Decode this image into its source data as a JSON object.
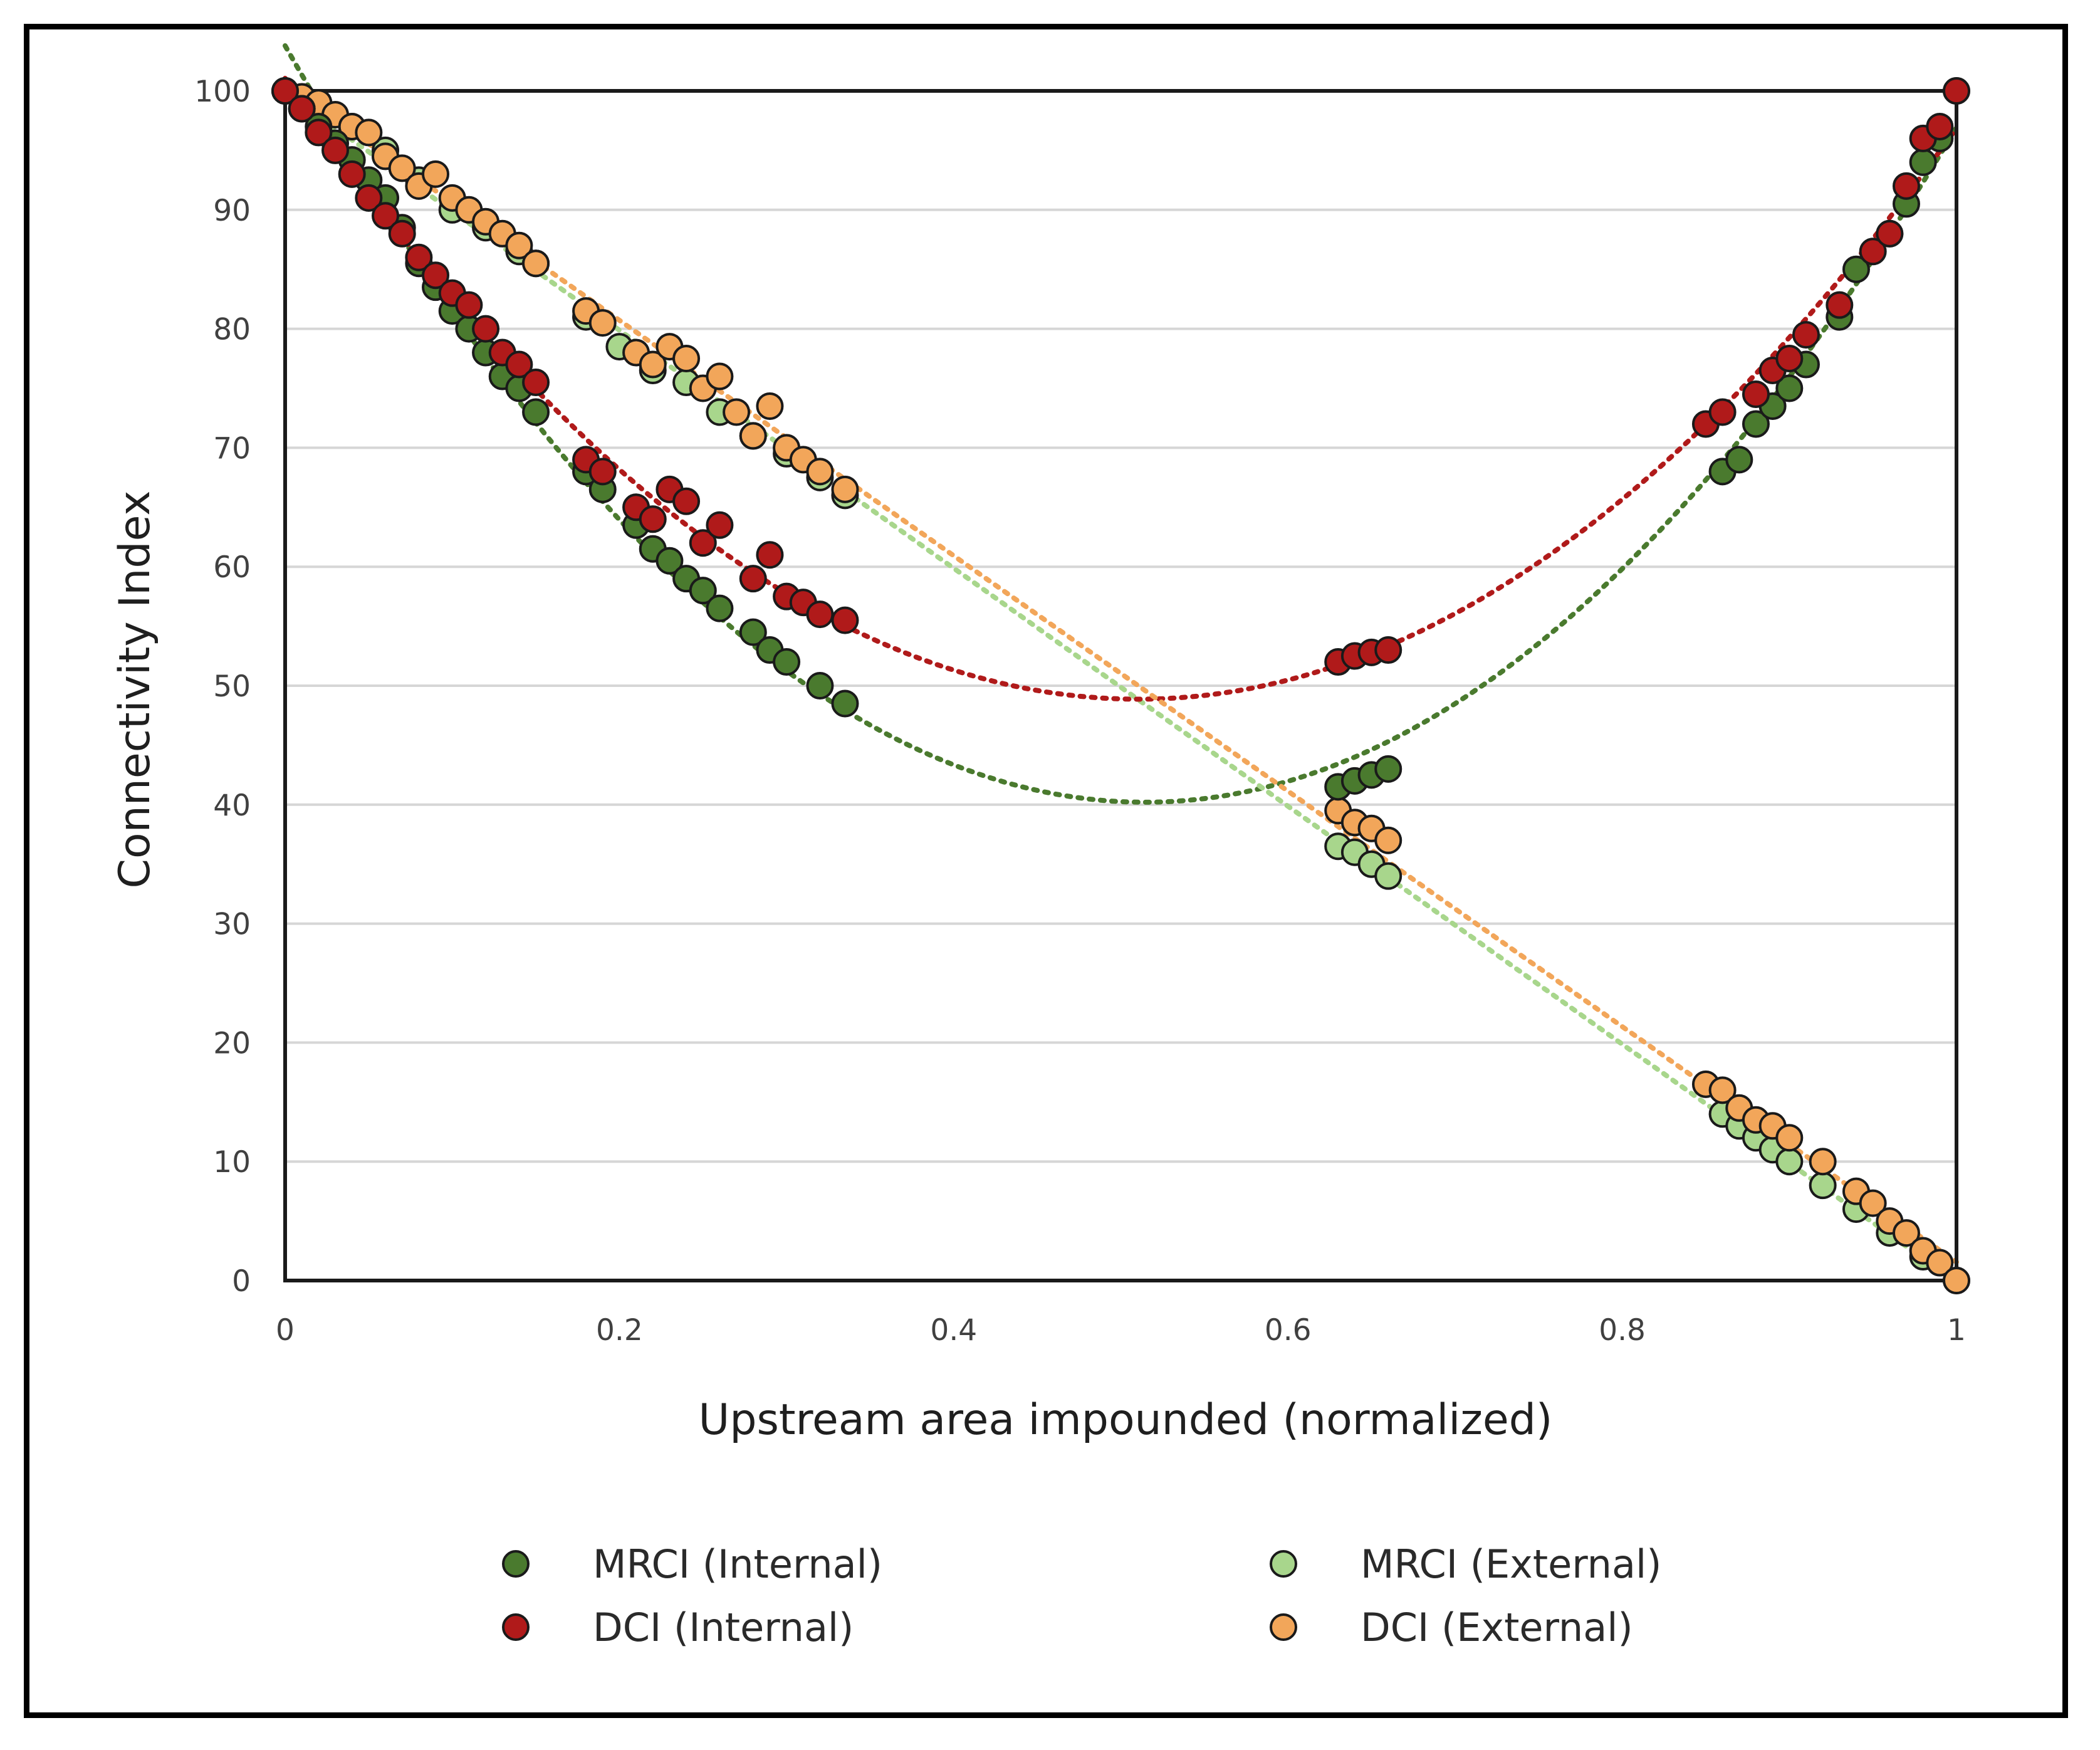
{
  "chart_data": {
    "type": "scatter",
    "title": "",
    "xlabel": "Upstream area impounded (normalized)",
    "ylabel": "Connectivity Index",
    "xlim": [
      0,
      1
    ],
    "ylim": [
      0,
      100
    ],
    "xticks": [
      "0",
      "0.2",
      "0.4",
      "0.6",
      "0.8",
      "1"
    ],
    "yticks": [
      "0",
      "10",
      "20",
      "30",
      "40",
      "50",
      "60",
      "70",
      "80",
      "90",
      "100"
    ],
    "grid": "horizontal",
    "legend_position": "bottom",
    "series": [
      {
        "name": "MRCI (Internal)",
        "color": "#4a7a2e",
        "trendline": "polynomial",
        "points": [
          [
            0,
            100
          ],
          [
            0.01,
            98.5
          ],
          [
            0.02,
            97
          ],
          [
            0.03,
            95.6
          ],
          [
            0.04,
            94.2
          ],
          [
            0.05,
            92.5
          ],
          [
            0.06,
            91
          ],
          [
            0.07,
            88.5
          ],
          [
            0.08,
            85.5
          ],
          [
            0.09,
            83.5
          ],
          [
            0.1,
            81.5
          ],
          [
            0.11,
            80
          ],
          [
            0.12,
            78
          ],
          [
            0.13,
            76
          ],
          [
            0.14,
            75
          ],
          [
            0.15,
            73
          ],
          [
            0.18,
            68
          ],
          [
            0.19,
            66.5
          ],
          [
            0.21,
            63.5
          ],
          [
            0.22,
            61.5
          ],
          [
            0.23,
            60.5
          ],
          [
            0.24,
            59
          ],
          [
            0.25,
            58
          ],
          [
            0.26,
            56.5
          ],
          [
            0.28,
            54.5
          ],
          [
            0.29,
            53
          ],
          [
            0.3,
            52
          ],
          [
            0.32,
            50
          ],
          [
            0.335,
            48.5
          ],
          [
            0.63,
            41.5
          ],
          [
            0.64,
            42
          ],
          [
            0.65,
            42.5
          ],
          [
            0.66,
            43
          ],
          [
            0.86,
            68
          ],
          [
            0.87,
            69
          ],
          [
            0.88,
            72
          ],
          [
            0.89,
            73.5
          ],
          [
            0.9,
            75
          ],
          [
            0.91,
            77
          ],
          [
            0.93,
            81
          ],
          [
            0.94,
            85
          ],
          [
            0.96,
            88
          ],
          [
            0.97,
            90.5
          ],
          [
            0.98,
            94
          ],
          [
            0.99,
            96
          ],
          [
            1,
            100
          ]
        ]
      },
      {
        "name": "MRCI (External)",
        "color": "#a8d68c",
        "trendline": "linear",
        "points": [
          [
            0,
            100
          ],
          [
            0.02,
            98.5
          ],
          [
            0.04,
            97
          ],
          [
            0.06,
            95
          ],
          [
            0.08,
            92.5
          ],
          [
            0.1,
            90
          ],
          [
            0.12,
            88.5
          ],
          [
            0.14,
            86.5
          ],
          [
            0.15,
            85.5
          ],
          [
            0.18,
            81
          ],
          [
            0.2,
            78.5
          ],
          [
            0.22,
            76.5
          ],
          [
            0.24,
            75.5
          ],
          [
            0.26,
            73
          ],
          [
            0.28,
            71
          ],
          [
            0.3,
            69.5
          ],
          [
            0.32,
            67.5
          ],
          [
            0.335,
            66
          ],
          [
            0.63,
            36.5
          ],
          [
            0.64,
            36
          ],
          [
            0.65,
            35
          ],
          [
            0.66,
            34
          ],
          [
            0.86,
            14
          ],
          [
            0.87,
            13
          ],
          [
            0.88,
            12
          ],
          [
            0.89,
            11
          ],
          [
            0.9,
            10
          ],
          [
            0.92,
            8
          ],
          [
            0.94,
            6
          ],
          [
            0.96,
            4
          ],
          [
            0.98,
            2
          ],
          [
            1,
            0
          ]
        ]
      },
      {
        "name": "DCI (Internal)",
        "color": "#b01a1a",
        "trendline": "polynomial",
        "points": [
          [
            0,
            100
          ],
          [
            0.01,
            98.5
          ],
          [
            0.02,
            96.5
          ],
          [
            0.03,
            95
          ],
          [
            0.04,
            93
          ],
          [
            0.05,
            91
          ],
          [
            0.06,
            89.5
          ],
          [
            0.07,
            88
          ],
          [
            0.08,
            86
          ],
          [
            0.09,
            84.5
          ],
          [
            0.1,
            83
          ],
          [
            0.11,
            82
          ],
          [
            0.12,
            80
          ],
          [
            0.13,
            78
          ],
          [
            0.14,
            77
          ],
          [
            0.15,
            75.5
          ],
          [
            0.18,
            69
          ],
          [
            0.19,
            68
          ],
          [
            0.21,
            65
          ],
          [
            0.22,
            64
          ],
          [
            0.23,
            66.5
          ],
          [
            0.24,
            65.5
          ],
          [
            0.25,
            62
          ],
          [
            0.26,
            63.5
          ],
          [
            0.28,
            59
          ],
          [
            0.29,
            61
          ],
          [
            0.3,
            57.5
          ],
          [
            0.31,
            57
          ],
          [
            0.32,
            56
          ],
          [
            0.335,
            55.5
          ],
          [
            0.63,
            52
          ],
          [
            0.64,
            52.5
          ],
          [
            0.65,
            52.8
          ],
          [
            0.66,
            53
          ],
          [
            0.85,
            72
          ],
          [
            0.86,
            73
          ],
          [
            0.88,
            74.5
          ],
          [
            0.89,
            76.5
          ],
          [
            0.9,
            77.5
          ],
          [
            0.91,
            79.5
          ],
          [
            0.93,
            82
          ],
          [
            0.95,
            86.5
          ],
          [
            0.96,
            88
          ],
          [
            0.97,
            92
          ],
          [
            0.98,
            96
          ],
          [
            0.99,
            97
          ],
          [
            1,
            100
          ]
        ]
      },
      {
        "name": "DCI (External)",
        "color": "#f2a65a",
        "trendline": "linear",
        "points": [
          [
            0,
            100
          ],
          [
            0.01,
            99.5
          ],
          [
            0.02,
            99
          ],
          [
            0.03,
            98
          ],
          [
            0.04,
            97
          ],
          [
            0.05,
            96.5
          ],
          [
            0.06,
            94.5
          ],
          [
            0.07,
            93.5
          ],
          [
            0.08,
            92
          ],
          [
            0.09,
            93
          ],
          [
            0.1,
            91
          ],
          [
            0.11,
            90
          ],
          [
            0.12,
            89
          ],
          [
            0.13,
            88
          ],
          [
            0.14,
            87
          ],
          [
            0.15,
            85.5
          ],
          [
            0.18,
            81.5
          ],
          [
            0.19,
            80.5
          ],
          [
            0.21,
            78
          ],
          [
            0.22,
            77
          ],
          [
            0.23,
            78.5
          ],
          [
            0.24,
            77.5
          ],
          [
            0.25,
            75
          ],
          [
            0.26,
            76
          ],
          [
            0.27,
            73
          ],
          [
            0.28,
            71
          ],
          [
            0.29,
            73.5
          ],
          [
            0.3,
            70
          ],
          [
            0.31,
            69
          ],
          [
            0.32,
            68
          ],
          [
            0.335,
            66.5
          ],
          [
            0.63,
            39.5
          ],
          [
            0.64,
            38.5
          ],
          [
            0.65,
            38
          ],
          [
            0.66,
            37
          ],
          [
            0.85,
            16.5
          ],
          [
            0.86,
            16
          ],
          [
            0.87,
            14.5
          ],
          [
            0.88,
            13.5
          ],
          [
            0.89,
            13
          ],
          [
            0.9,
            12
          ],
          [
            0.92,
            10
          ],
          [
            0.94,
            7.5
          ],
          [
            0.95,
            6.5
          ],
          [
            0.96,
            5
          ],
          [
            0.97,
            4
          ],
          [
            0.98,
            2.5
          ],
          [
            0.99,
            1.5
          ],
          [
            1,
            0
          ]
        ]
      }
    ]
  }
}
